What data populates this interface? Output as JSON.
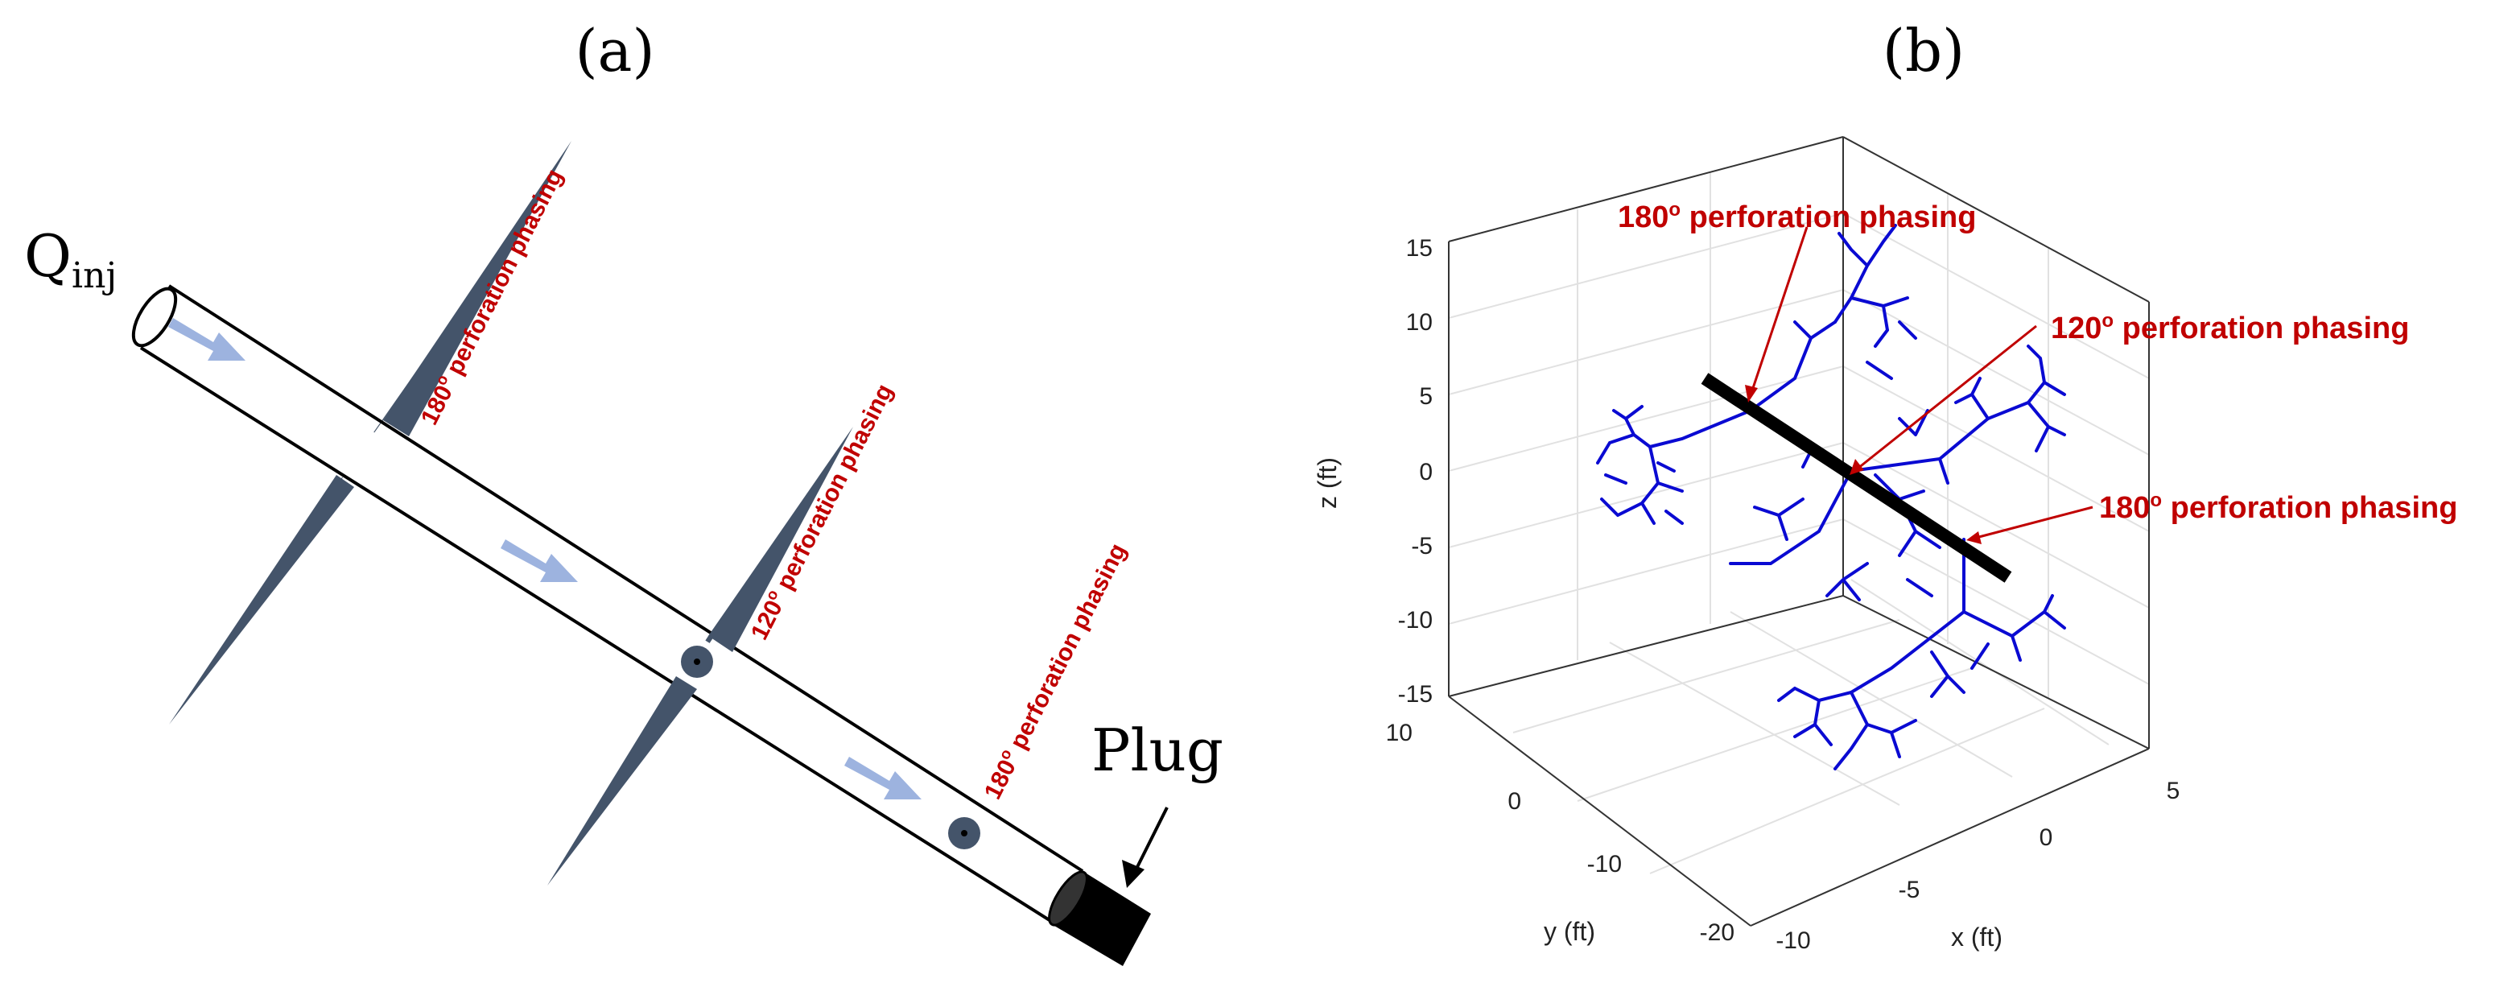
{
  "panel_a": {
    "label": "(a)",
    "inlet_main": "Q",
    "inlet_sub": "inj",
    "plug_label": "Plug",
    "perforations": [
      {
        "deg": "180",
        "sup": "o",
        "text": " perforation phasing"
      },
      {
        "deg": "120",
        "sup": "o",
        "text": " perforation phasing"
      },
      {
        "deg": "180",
        "sup": "o",
        "text": " perforation phasing"
      }
    ]
  },
  "panel_b": {
    "label": "(b)",
    "callouts": [
      {
        "deg": "180",
        "sup": "o",
        "text": " perforation phasing"
      },
      {
        "deg": "120",
        "sup": "o",
        "text": " perforation phasing"
      },
      {
        "deg": "180",
        "sup": "o",
        "text": " perforation phasing"
      }
    ],
    "axes": {
      "zlabel": "z (ft)",
      "ylabel": "y (ft)",
      "xlabel": "x (ft)",
      "zticks": [
        "15",
        "10",
        "5",
        "0",
        "-5",
        "-10",
        "-15"
      ],
      "yticks": [
        "10",
        "0",
        "-10",
        "-20"
      ],
      "xticks": [
        "-10",
        "-5",
        "0",
        "5"
      ]
    }
  },
  "colors": {
    "annotation_red": "#c00000",
    "fracture_gray": "#44546a",
    "flow_arrow": "#9db3df",
    "network_blue": "#0a0ad2",
    "wellbore_black": "#000000"
  }
}
